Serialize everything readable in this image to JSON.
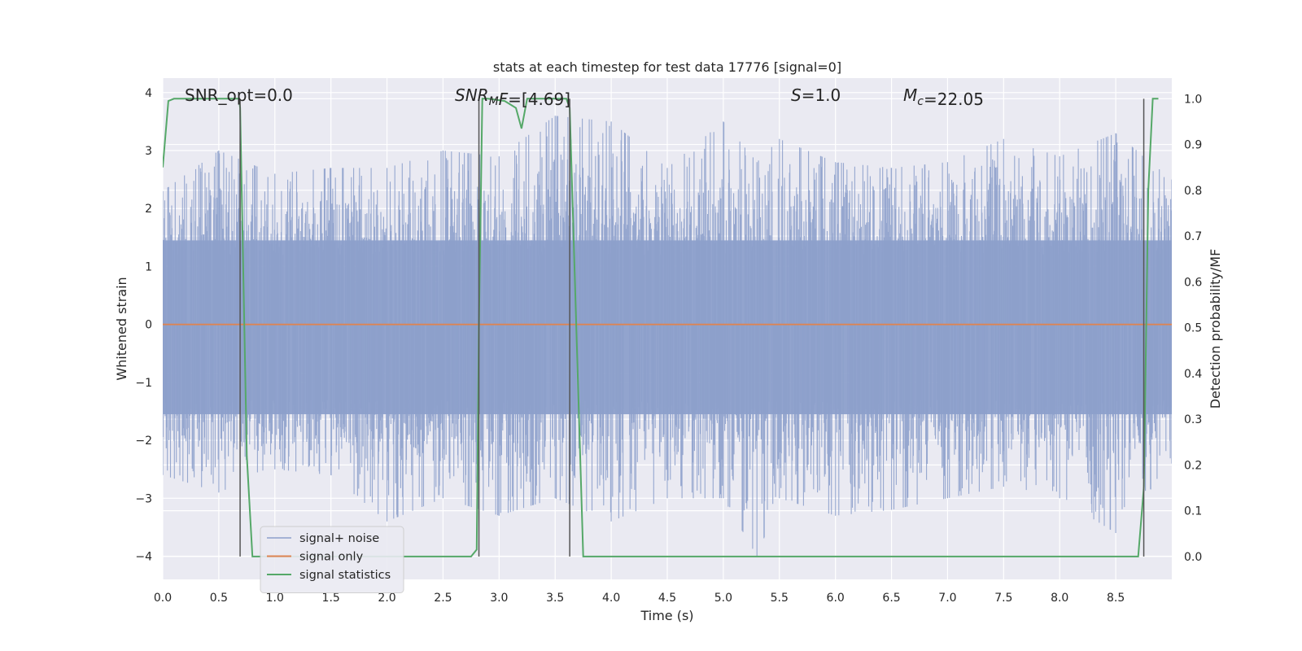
{
  "chart_data": {
    "type": "line",
    "title": "stats at each timestep for test data 17776 [signal=0]",
    "xlabel": "Time (s)",
    "ylabel": "Whitened strain",
    "y2label": "Detection probability/MF",
    "xlim": [
      0.0,
      9.0
    ],
    "ylim": [
      -4.4,
      4.25
    ],
    "y2lim": [
      -0.05,
      1.045
    ],
    "x_ticks": [
      0.0,
      0.5,
      1.0,
      1.5,
      2.0,
      2.5,
      3.0,
      3.5,
      4.0,
      4.5,
      5.0,
      5.5,
      6.0,
      6.5,
      7.0,
      7.5,
      8.0,
      8.5
    ],
    "x_tick_labels": [
      "0.0",
      "0.5",
      "1.0",
      "1.5",
      "2.0",
      "2.5",
      "3.0",
      "3.5",
      "4.0",
      "4.5",
      "5.0",
      "5.5",
      "6.0",
      "6.5",
      "7.0",
      "7.5",
      "8.0",
      "8.5"
    ],
    "y_ticks": [
      -4,
      -3,
      -2,
      -1,
      0,
      1,
      2,
      3,
      4
    ],
    "y_tick_labels": [
      "−4",
      "−3",
      "−2",
      "−1",
      "0",
      "1",
      "2",
      "3",
      "4"
    ],
    "y2_ticks": [
      0.0,
      0.1,
      0.2,
      0.3,
      0.4,
      0.5,
      0.6,
      0.7,
      0.8,
      0.9,
      1.0
    ],
    "y2_tick_labels": [
      "0.0",
      "0.1",
      "0.2",
      "0.3",
      "0.4",
      "0.5",
      "0.6",
      "0.7",
      "0.8",
      "0.9",
      "1.0"
    ],
    "grid": true,
    "legend_position": "lower-left",
    "annotations": [
      {
        "id": "snr-opt",
        "segments": [
          {
            "text": "SNR_opt=0.0",
            "italic": false
          }
        ]
      },
      {
        "id": "snr-mf",
        "segments": [
          {
            "text": "SNR",
            "italic": true
          },
          {
            "text": "M",
            "italic": true,
            "sub": true
          },
          {
            "text": "F",
            "italic": true
          },
          {
            "text": "=[4.69]",
            "italic": false
          }
        ]
      },
      {
        "id": "s-value",
        "segments": [
          {
            "text": "S",
            "italic": true
          },
          {
            "text": "=1.0",
            "italic": false
          }
        ]
      },
      {
        "id": "mc-value",
        "segments": [
          {
            "text": "M",
            "italic": true
          },
          {
            "text": "c",
            "italic": true,
            "sub": true
          },
          {
            "text": "=22.05",
            "italic": false
          }
        ]
      }
    ],
    "series": [
      {
        "name": "signal+ noise",
        "color": "#8da0cb",
        "axis": "left",
        "kind": "noise",
        "envelope": [
          {
            "x": 0.0,
            "high": 2.3,
            "low": -2.6
          },
          {
            "x": 0.5,
            "high": 3.0,
            "low": -2.9
          },
          {
            "x": 1.0,
            "high": 2.6,
            "low": -2.5
          },
          {
            "x": 1.5,
            "high": 2.7,
            "low": -2.6
          },
          {
            "x": 2.0,
            "high": 2.7,
            "low": -3.4
          },
          {
            "x": 2.5,
            "high": 3.0,
            "low": -3.0
          },
          {
            "x": 3.0,
            "high": 2.9,
            "low": -3.3
          },
          {
            "x": 3.5,
            "high": 3.6,
            "low": -3.0
          },
          {
            "x": 4.0,
            "high": 3.5,
            "low": -3.4
          },
          {
            "x": 4.5,
            "high": 2.7,
            "low": -3.0
          },
          {
            "x": 5.0,
            "high": 3.5,
            "low": -3.0
          },
          {
            "x": 5.3,
            "high": 2.8,
            "low": -4.0
          },
          {
            "x": 5.5,
            "high": 3.2,
            "low": -3.0
          },
          {
            "x": 6.0,
            "high": 2.8,
            "low": -3.3
          },
          {
            "x": 6.5,
            "high": 2.7,
            "low": -3.2
          },
          {
            "x": 7.0,
            "high": 2.8,
            "low": -3.0
          },
          {
            "x": 7.5,
            "high": 3.2,
            "low": -2.8
          },
          {
            "x": 8.0,
            "high": 2.9,
            "low": -3.0
          },
          {
            "x": 8.5,
            "high": 3.3,
            "low": -3.6
          },
          {
            "x": 9.0,
            "high": 2.5,
            "low": -2.4
          }
        ]
      },
      {
        "name": "signal only",
        "color": "#dd8452",
        "axis": "left",
        "kind": "line",
        "x": [
          0.0,
          9.0
        ],
        "y": [
          0.0,
          0.0
        ]
      },
      {
        "name": "signal statistics",
        "color": "#55a868",
        "axis": "right",
        "kind": "line",
        "x": [
          0.0,
          0.05,
          0.1,
          0.68,
          0.69,
          0.75,
          0.8,
          2.75,
          2.8,
          2.82,
          2.85,
          2.9,
          3.05,
          3.15,
          3.2,
          3.25,
          3.6,
          3.63,
          3.75,
          8.7,
          8.75,
          8.79,
          8.83,
          8.88
        ],
        "y": [
          0.85,
          0.995,
          1.0,
          1.0,
          0.98,
          0.22,
          0.0,
          0.0,
          0.015,
          0.5,
          1.0,
          1.0,
          0.995,
          0.98,
          0.935,
          1.0,
          1.0,
          0.98,
          0.0,
          0.0,
          0.15,
          0.8,
          1.0,
          1.0
        ]
      },
      {
        "name": "",
        "color": "#555555",
        "axis": "right",
        "kind": "vlines",
        "x": [
          0.69,
          2.82,
          3.63,
          8.75
        ],
        "y_range": [
          0.0,
          1.0
        ]
      }
    ]
  }
}
